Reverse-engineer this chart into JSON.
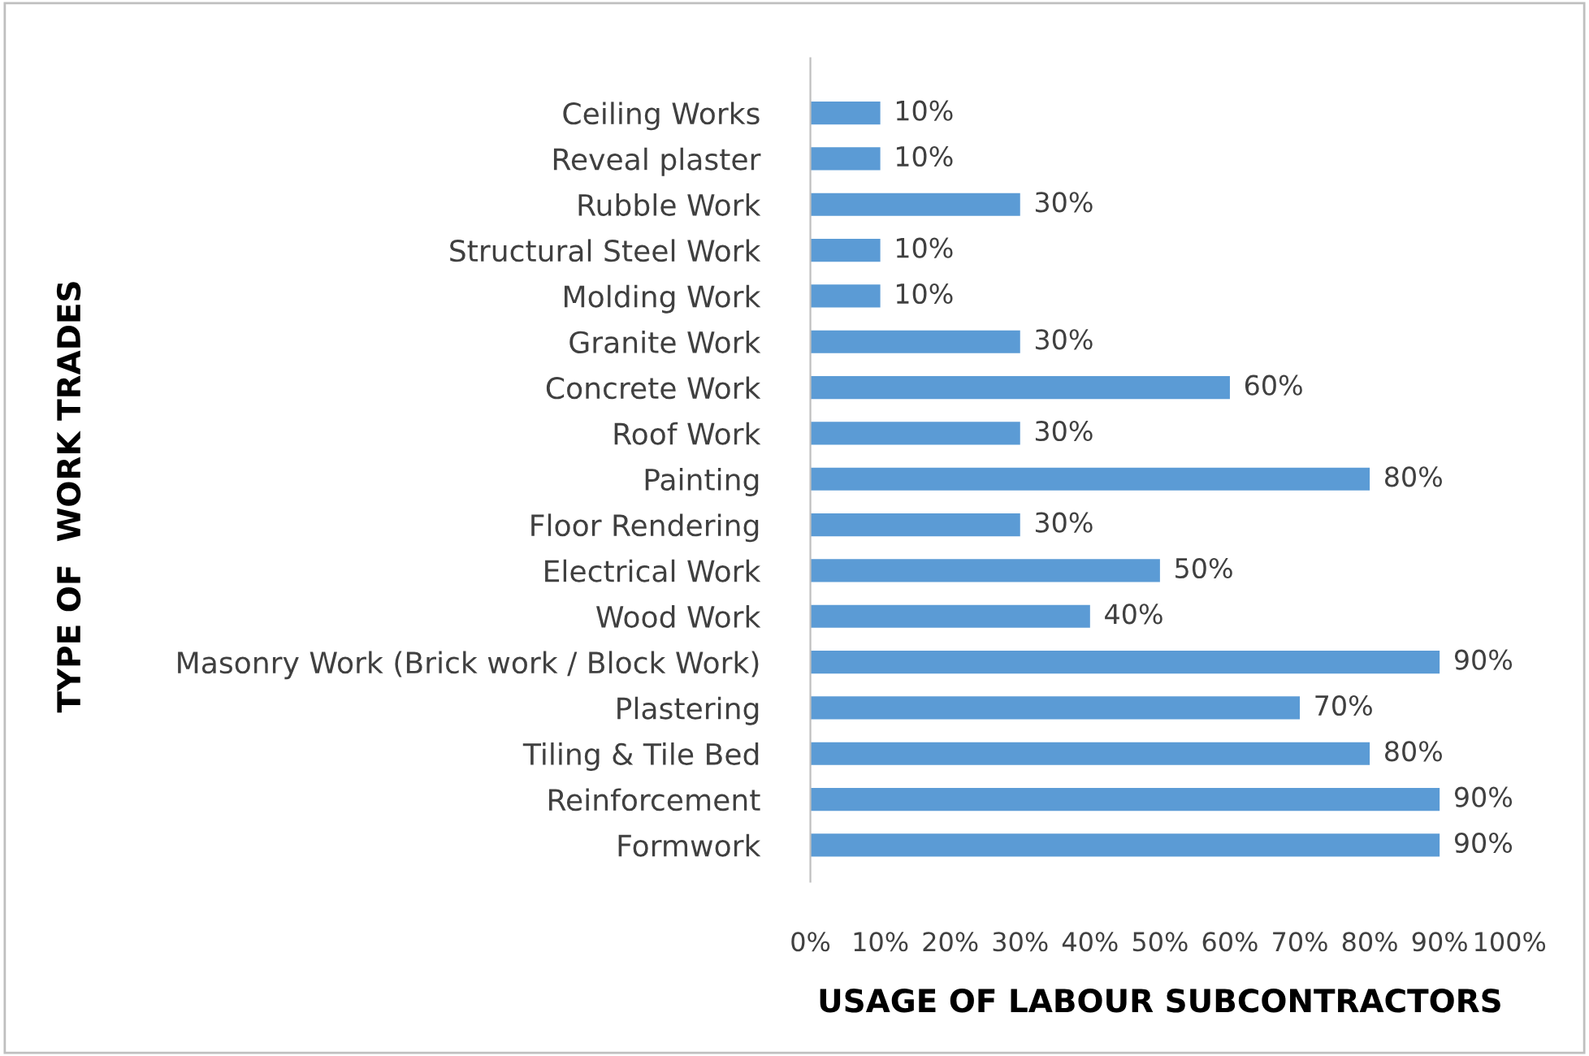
{
  "chart_data": {
    "type": "bar",
    "orientation": "horizontal",
    "xlabel": "USAGE OF LABOUR SUBCONTRACTORS",
    "ylabel": "TYPE OF  WORK TRADES",
    "categories": [
      "Ceiling Works",
      "Reveal plaster",
      "Rubble Work",
      "Structural Steel Work",
      "Molding Work",
      "Granite Work",
      "Concrete Work",
      "Roof Work",
      "Painting",
      "Floor Rendering",
      "Electrical Work",
      "Wood Work",
      "Masonry Work (Brick work / Block Work)",
      "Plastering",
      "Tiling & Tile Bed",
      "Reinforcement",
      "Formwork"
    ],
    "values": [
      10,
      10,
      30,
      10,
      10,
      30,
      60,
      30,
      80,
      30,
      50,
      40,
      90,
      70,
      80,
      90,
      90
    ],
    "value_labels": [
      "10%",
      "10%",
      "30%",
      "10%",
      "10%",
      "30%",
      "60%",
      "30%",
      "80%",
      "30%",
      "50%",
      "40%",
      "90%",
      "70%",
      "80%",
      "90%",
      "90%"
    ],
    "color": "#5b9bd5",
    "xlim": [
      0,
      100
    ],
    "xticks": [
      {
        "value": 0,
        "label": "0%"
      },
      {
        "value": 10,
        "label": "10%"
      },
      {
        "value": 20,
        "label": "20%"
      },
      {
        "value": 30,
        "label": "30%"
      },
      {
        "value": 40,
        "label": "40%"
      },
      {
        "value": 50,
        "label": "50%"
      },
      {
        "value": 60,
        "label": "60%"
      },
      {
        "value": 70,
        "label": "70%"
      },
      {
        "value": 80,
        "label": "80%"
      },
      {
        "value": 90,
        "label": "90%"
      },
      {
        "value": 100,
        "label": "100%"
      }
    ],
    "grid": false,
    "legend": false
  }
}
